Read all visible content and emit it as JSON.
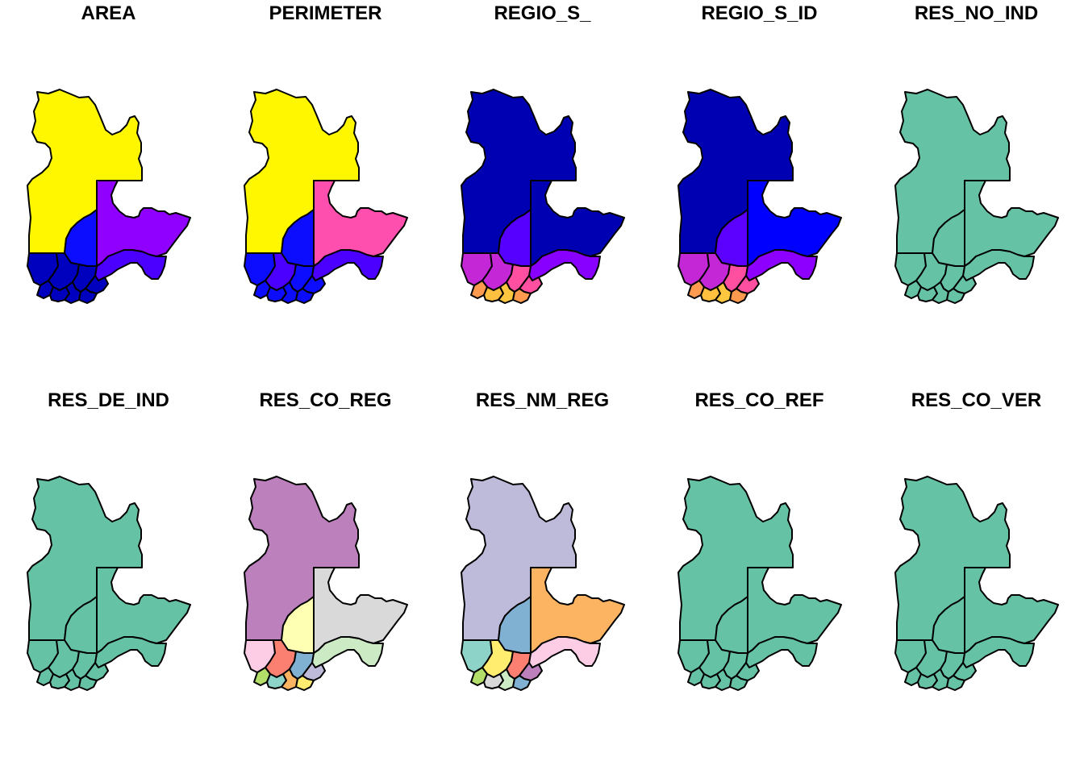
{
  "panels": [
    {
      "title": "AREA",
      "fills": [
        "#FFF700",
        "#8F00FF",
        "#0C0CFF",
        "#4B00FF",
        "#0000BF",
        "#0000BF",
        "#0000BF",
        "#0000BF",
        "#0000BF",
        "#0000BF",
        "#0000BF",
        "#0000BF"
      ]
    },
    {
      "title": "PERIMETER",
      "fills": [
        "#FFF700",
        "#FF4FAE",
        "#0C0CFF",
        "#4B00FF",
        "#0C0CFF",
        "#4B00FF",
        "#0C0CFF",
        "#0C0CFF",
        "#0C0CFF",
        "#0C0CFF",
        "#0C0CFF",
        "#0C0CFF"
      ]
    },
    {
      "title": "REGIO_S_",
      "fills": [
        "#0000B3",
        "#0000B3",
        "#5600FF",
        "#8800FF",
        "#C427D6",
        "#C427D6",
        "#FF4FA1",
        "#FF4FA1",
        "#FF9A4F",
        "#FFBF3F",
        "#FFC73F",
        "#FF9A4F"
      ]
    },
    {
      "title": "REGIO_S_ID",
      "fills": [
        "#0000B3",
        "#0000FF",
        "#5C00FF",
        "#8D00FF",
        "#C427D6",
        "#C427D6",
        "#FF4FA1",
        "#FF4FA1",
        "#FF9A4F",
        "#FFBF3F",
        "#FFC73F",
        "#FF9A4F"
      ]
    },
    {
      "title": "RES_NO_IND",
      "fills": [
        "#66C2A5",
        "#66C2A5",
        "#66C2A5",
        "#66C2A5",
        "#66C2A5",
        "#66C2A5",
        "#66C2A5",
        "#66C2A5",
        "#66C2A5",
        "#66C2A5",
        "#66C2A5",
        "#66C2A5"
      ]
    },
    {
      "title": "RES_DE_IND",
      "fills": [
        "#66C2A5",
        "#66C2A5",
        "#66C2A5",
        "#66C2A5",
        "#66C2A5",
        "#66C2A5",
        "#66C2A5",
        "#66C2A5",
        "#66C2A5",
        "#66C2A5",
        "#66C2A5",
        "#66C2A5"
      ]
    },
    {
      "title": "RES_CO_REG",
      "fills": [
        "#BC80BD",
        "#D9D9D9",
        "#FFFFB3",
        "#CCEBC5",
        "#FCCDE5",
        "#FB8072",
        "#80B1D3",
        "#BEBADA",
        "#B3DE69",
        "#8DD3C7",
        "#FDB462",
        "#FFED6F"
      ]
    },
    {
      "title": "RES_NM_REG",
      "fills": [
        "#BEBADA",
        "#FDB462",
        "#80B1D3",
        "#FCCDE5",
        "#8DD3C7",
        "#FFED6F",
        "#FB8072",
        "#BC80BD",
        "#B3DE69",
        "#D9D9D9",
        "#CCEBC5",
        "#80B1D3"
      ]
    },
    {
      "title": "RES_CO_REF",
      "fills": [
        "#66C2A5",
        "#66C2A5",
        "#66C2A5",
        "#66C2A5",
        "#66C2A5",
        "#66C2A5",
        "#66C2A5",
        "#66C2A5",
        "#66C2A5",
        "#66C2A5",
        "#66C2A5",
        "#66C2A5"
      ]
    },
    {
      "title": "RES_CO_VER",
      "fills": [
        "#66C2A5",
        "#66C2A5",
        "#66C2A5",
        "#66C2A5",
        "#66C2A5",
        "#66C2A5",
        "#66C2A5",
        "#66C2A5",
        "#66C2A5",
        "#66C2A5",
        "#66C2A5",
        "#66C2A5"
      ]
    }
  ]
}
